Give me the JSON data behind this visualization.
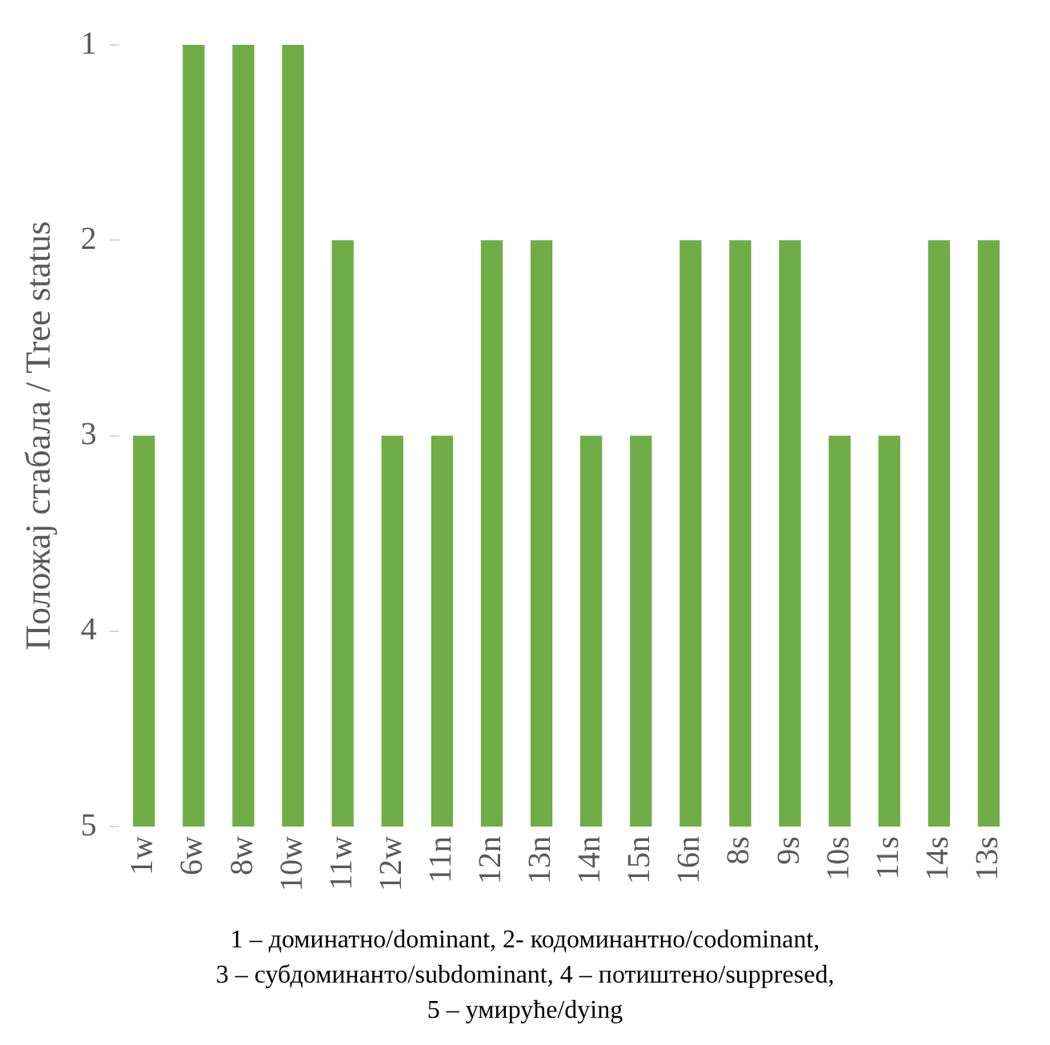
{
  "chart_data": {
    "type": "bar",
    "ylabel": "Положај стабала / Tree status",
    "categories": [
      "1w",
      "6w",
      "8w",
      "10w",
      "11w",
      "12w",
      "11n",
      "12n",
      "13n",
      "14n",
      "15n",
      "16n",
      "8s",
      "9s",
      "10s",
      "11s",
      "14s",
      "13s"
    ],
    "values": [
      -2,
      -4,
      -4,
      -4,
      -3,
      -2,
      -2,
      -3,
      -3,
      -2,
      -2,
      -3,
      -3,
      -3,
      -2,
      -2,
      -3,
      -3
    ],
    "base": [
      5,
      5,
      5,
      5,
      5,
      5,
      5,
      5,
      5,
      5,
      5,
      5,
      5,
      5,
      5,
      5,
      5,
      5
    ],
    "color": "#70ad47",
    "ylim": [
      5,
      1
    ],
    "yticks": [
      1,
      2,
      3,
      4,
      5
    ],
    "grid": false,
    "legend": false,
    "annotations": [
      "1 – доминатно/dominant, 2- кодоминантно/codominant,",
      "3 – субдоминанто/subdominant, 4 – потиштено/suppresed,",
      "5 – умируће/dying"
    ]
  }
}
